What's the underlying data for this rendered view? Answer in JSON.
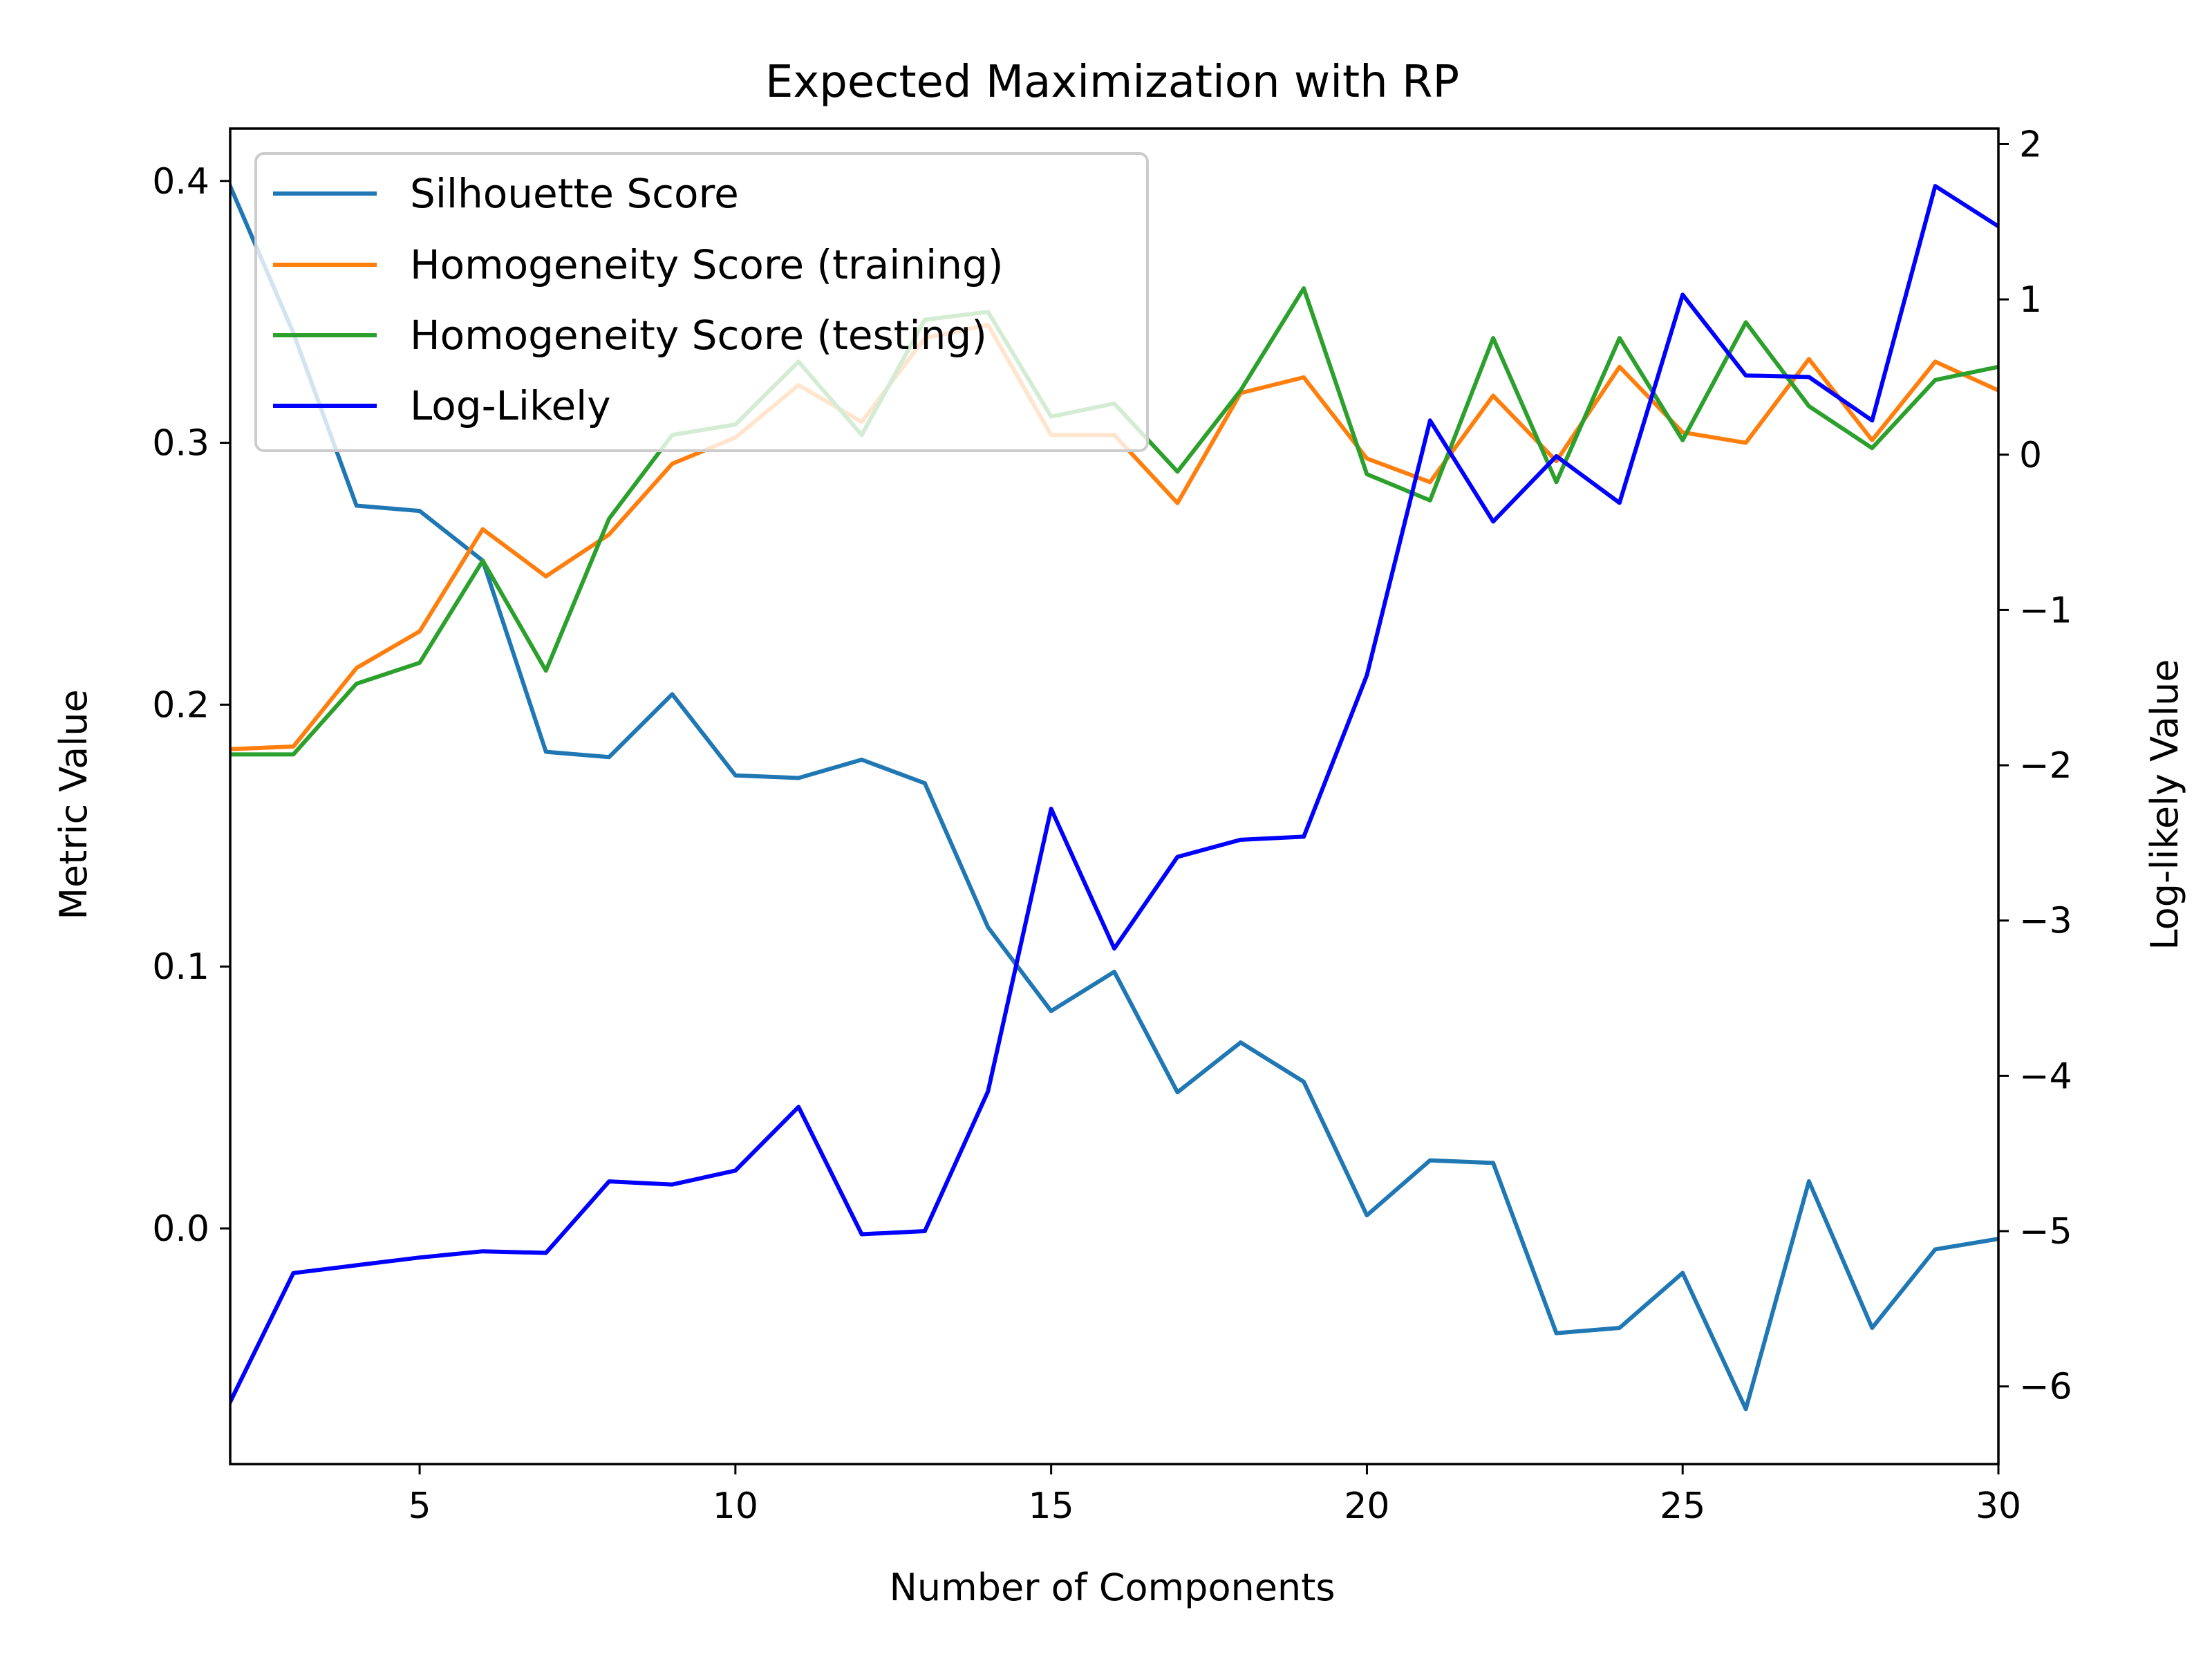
{
  "chart_data": {
    "type": "line",
    "title": "Expected Maximization with RP",
    "xlabel": "Number of Components",
    "ylabel": "Metric Value",
    "y2label": "Log-likely Value",
    "xlim": [
      2,
      30
    ],
    "ylim": [
      -0.09,
      0.42
    ],
    "y2lim": [
      -6.5,
      2.1
    ],
    "x_ticks": [
      5,
      10,
      15,
      20,
      25,
      30
    ],
    "y_ticks": [
      0.0,
      0.1,
      0.2,
      0.3,
      0.4
    ],
    "y_tick_labels": [
      "0.0",
      "0.1",
      "0.2",
      "0.3",
      "0.4"
    ],
    "y2_ticks": [
      -6,
      -5,
      -4,
      -3,
      -2,
      -1,
      0,
      1,
      2
    ],
    "y2_tick_labels": [
      "−6",
      "−5",
      "−4",
      "−3",
      "−2",
      "−1",
      "0",
      "1",
      "2"
    ],
    "grid": false,
    "legend_position": "top-left",
    "x": [
      2,
      3,
      4,
      5,
      6,
      7,
      8,
      9,
      10,
      11,
      12,
      13,
      14,
      15,
      16,
      17,
      18,
      19,
      20,
      21,
      22,
      23,
      24,
      25,
      26,
      27,
      28,
      29,
      30
    ],
    "series": [
      {
        "name": "Silhouette Score",
        "axis": "left",
        "color": "#1f77b4",
        "values": [
          0.398,
          0.342,
          0.276,
          0.274,
          0.255,
          0.182,
          0.18,
          0.204,
          0.173,
          0.172,
          0.179,
          0.17,
          0.115,
          0.083,
          0.098,
          0.052,
          0.071,
          0.056,
          0.005,
          0.026,
          0.025,
          -0.04,
          -0.038,
          -0.017,
          -0.069,
          0.018,
          -0.038,
          -0.008,
          -0.004
        ]
      },
      {
        "name": "Homogeneity Score (training)",
        "axis": "left",
        "color": "#ff7f0e",
        "values": [
          0.183,
          0.184,
          0.214,
          0.228,
          0.267,
          0.249,
          0.265,
          0.292,
          0.302,
          0.322,
          0.308,
          0.34,
          0.345,
          0.303,
          0.303,
          0.277,
          0.319,
          0.325,
          0.294,
          0.285,
          0.318,
          0.293,
          0.329,
          0.304,
          0.3,
          0.332,
          0.301,
          0.331,
          0.32
        ]
      },
      {
        "name": "Homogeneity Score (testing)",
        "axis": "left",
        "color": "#2ca02c",
        "values": [
          0.181,
          0.181,
          0.208,
          0.216,
          0.255,
          0.213,
          0.271,
          0.303,
          0.307,
          0.331,
          0.303,
          0.347,
          0.35,
          0.31,
          0.315,
          0.289,
          0.32,
          0.359,
          0.288,
          0.278,
          0.34,
          0.285,
          0.34,
          0.301,
          0.346,
          0.314,
          0.298,
          0.324,
          0.329
        ]
      },
      {
        "name": "Log-Likely",
        "axis": "right",
        "color": "#0000ff",
        "values": [
          -6.1,
          -5.27,
          -5.22,
          -5.17,
          -5.13,
          -5.14,
          -4.68,
          -4.7,
          -4.61,
          -4.2,
          -5.02,
          -5.0,
          -4.1,
          -2.28,
          -3.18,
          -2.59,
          -2.48,
          -2.46,
          -1.42,
          0.22,
          -0.43,
          -0.01,
          -0.31,
          1.03,
          0.51,
          0.5,
          0.22,
          1.73,
          1.47
        ]
      }
    ]
  }
}
